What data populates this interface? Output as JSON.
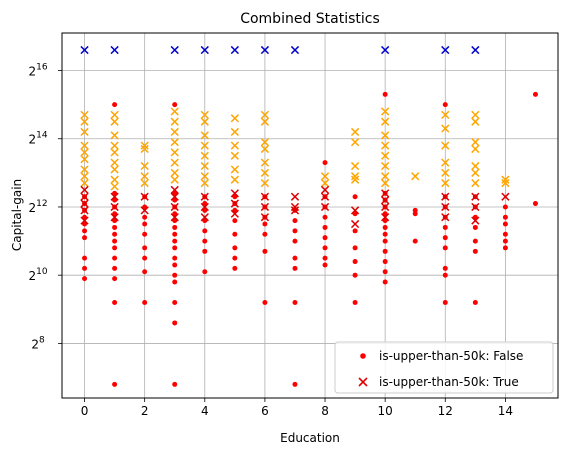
{
  "chart_data": {
    "type": "scatter",
    "title": "Combined Statistics",
    "xlabel": "Education",
    "ylabel": "Capital-gain",
    "xlim": [
      -0.75,
      15.75
    ],
    "ylim_log2": [
      6.4,
      17.1
    ],
    "y_scale": "log2",
    "x_ticks": [
      0,
      2,
      4,
      6,
      8,
      10,
      12,
      14
    ],
    "y_ticks_exp": [
      8,
      10,
      12,
      14,
      16
    ],
    "grid": true,
    "legend_position": "lower-right",
    "series": [
      {
        "name": "is-upper-than-50k: False",
        "marker": "dot",
        "points_log2": [
          [
            0,
            12.3
          ],
          [
            0,
            12.1
          ],
          [
            0,
            11.9
          ],
          [
            0,
            11.7
          ],
          [
            0,
            11.5
          ],
          [
            0,
            11.3
          ],
          [
            0,
            11.1
          ],
          [
            0,
            10.5
          ],
          [
            0,
            10.2
          ],
          [
            0,
            9.9
          ],
          [
            1,
            12.4
          ],
          [
            1,
            12.2
          ],
          [
            1,
            12.0
          ],
          [
            1,
            11.8
          ],
          [
            1,
            11.6
          ],
          [
            1,
            11.4
          ],
          [
            1,
            11.2
          ],
          [
            1,
            11.0
          ],
          [
            1,
            10.8
          ],
          [
            1,
            10.5
          ],
          [
            1,
            10.2
          ],
          [
            1,
            9.9
          ],
          [
            1,
            9.2
          ],
          [
            1,
            6.8
          ],
          [
            1,
            15.0
          ],
          [
            2,
            12.3
          ],
          [
            2,
            12.0
          ],
          [
            2,
            11.7
          ],
          [
            2,
            11.5
          ],
          [
            2,
            11.2
          ],
          [
            2,
            10.8
          ],
          [
            2,
            10.5
          ],
          [
            2,
            10.1
          ],
          [
            2,
            9.2
          ],
          [
            3,
            12.4
          ],
          [
            3,
            12.2
          ],
          [
            3,
            12.0
          ],
          [
            3,
            11.8
          ],
          [
            3,
            11.6
          ],
          [
            3,
            11.4
          ],
          [
            3,
            11.2
          ],
          [
            3,
            11.0
          ],
          [
            3,
            10.8
          ],
          [
            3,
            10.5
          ],
          [
            3,
            10.3
          ],
          [
            3,
            10.0
          ],
          [
            3,
            9.8
          ],
          [
            3,
            9.2
          ],
          [
            3,
            8.6
          ],
          [
            3,
            6.8
          ],
          [
            3,
            15.0
          ],
          [
            4,
            12.3
          ],
          [
            4,
            12.1
          ],
          [
            4,
            11.9
          ],
          [
            4,
            11.6
          ],
          [
            4,
            11.3
          ],
          [
            4,
            11.0
          ],
          [
            4,
            10.7
          ],
          [
            4,
            10.1
          ],
          [
            5,
            12.3
          ],
          [
            5,
            12.1
          ],
          [
            5,
            11.9
          ],
          [
            5,
            11.6
          ],
          [
            5,
            11.2
          ],
          [
            5,
            10.8
          ],
          [
            5,
            10.5
          ],
          [
            5,
            10.2
          ],
          [
            6,
            12.3
          ],
          [
            6,
            12.0
          ],
          [
            6,
            11.7
          ],
          [
            6,
            11.5
          ],
          [
            6,
            11.2
          ],
          [
            6,
            10.7
          ],
          [
            6,
            9.2
          ],
          [
            7,
            11.9
          ],
          [
            7,
            11.6
          ],
          [
            7,
            11.3
          ],
          [
            7,
            11.0
          ],
          [
            7,
            10.5
          ],
          [
            7,
            10.2
          ],
          [
            7,
            9.2
          ],
          [
            7,
            6.8
          ],
          [
            8,
            13.3
          ],
          [
            8,
            12.3
          ],
          [
            8,
            12.0
          ],
          [
            8,
            11.7
          ],
          [
            8,
            11.4
          ],
          [
            8,
            11.1
          ],
          [
            8,
            10.8
          ],
          [
            8,
            10.5
          ],
          [
            8,
            10.3
          ],
          [
            9,
            12.3
          ],
          [
            9,
            11.8
          ],
          [
            9,
            11.3
          ],
          [
            9,
            10.8
          ],
          [
            9,
            10.4
          ],
          [
            9,
            10.0
          ],
          [
            9,
            9.2
          ],
          [
            10,
            15.3
          ],
          [
            10,
            12.4
          ],
          [
            10,
            12.2
          ],
          [
            10,
            12.0
          ],
          [
            10,
            11.8
          ],
          [
            10,
            11.6
          ],
          [
            10,
            11.4
          ],
          [
            10,
            11.2
          ],
          [
            10,
            11.0
          ],
          [
            10,
            10.7
          ],
          [
            10,
            10.4
          ],
          [
            10,
            10.1
          ],
          [
            10,
            9.8
          ],
          [
            11,
            11.9
          ],
          [
            11,
            11.8
          ],
          [
            11,
            11.0
          ],
          [
            12,
            15.0
          ],
          [
            12,
            12.3
          ],
          [
            12,
            12.0
          ],
          [
            12,
            11.7
          ],
          [
            12,
            11.4
          ],
          [
            12,
            11.1
          ],
          [
            12,
            10.8
          ],
          [
            12,
            10.2
          ],
          [
            12,
            10.0
          ],
          [
            12,
            9.2
          ],
          [
            13,
            12.3
          ],
          [
            13,
            12.0
          ],
          [
            13,
            11.7
          ],
          [
            13,
            11.4
          ],
          [
            13,
            11.0
          ],
          [
            13,
            10.7
          ],
          [
            13,
            9.2
          ],
          [
            14,
            12.0
          ],
          [
            14,
            11.7
          ],
          [
            14,
            11.5
          ],
          [
            14,
            11.2
          ],
          [
            14,
            11.0
          ],
          [
            14,
            10.8
          ],
          [
            15,
            15.3
          ],
          [
            15,
            12.1
          ]
        ]
      },
      {
        "name": "is-upper-than-50k: True",
        "marker": "x",
        "points_log2": [
          [
            0,
            16.6
          ],
          [
            1,
            16.6
          ],
          [
            3,
            16.6
          ],
          [
            4,
            16.6
          ],
          [
            5,
            16.6
          ],
          [
            6,
            16.6
          ],
          [
            7,
            16.6
          ],
          [
            10,
            16.6
          ],
          [
            12,
            16.6
          ],
          [
            13,
            16.6
          ],
          [
            0,
            14.7
          ],
          [
            0,
            14.5
          ],
          [
            0,
            14.2
          ],
          [
            0,
            13.8
          ],
          [
            0,
            13.6
          ],
          [
            0,
            13.4
          ],
          [
            0,
            13.1
          ],
          [
            0,
            12.9
          ],
          [
            0,
            12.7
          ],
          [
            0,
            12.5
          ],
          [
            0,
            12.3
          ],
          [
            0,
            12.1
          ],
          [
            0,
            11.9
          ],
          [
            0,
            11.6
          ],
          [
            1,
            14.7
          ],
          [
            1,
            14.5
          ],
          [
            1,
            14.1
          ],
          [
            1,
            13.8
          ],
          [
            1,
            13.6
          ],
          [
            1,
            13.3
          ],
          [
            1,
            13.1
          ],
          [
            1,
            12.8
          ],
          [
            1,
            12.6
          ],
          [
            1,
            12.3
          ],
          [
            1,
            12.0
          ],
          [
            1,
            11.7
          ],
          [
            2,
            13.8
          ],
          [
            2,
            13.7
          ],
          [
            2,
            13.2
          ],
          [
            2,
            12.9
          ],
          [
            2,
            12.7
          ],
          [
            2,
            12.3
          ],
          [
            2,
            11.9
          ],
          [
            3,
            14.8
          ],
          [
            3,
            14.5
          ],
          [
            3,
            14.2
          ],
          [
            3,
            13.9
          ],
          [
            3,
            13.6
          ],
          [
            3,
            13.3
          ],
          [
            3,
            13.0
          ],
          [
            3,
            12.8
          ],
          [
            3,
            12.5
          ],
          [
            3,
            12.3
          ],
          [
            3,
            12.0
          ],
          [
            3,
            11.7
          ],
          [
            4,
            14.7
          ],
          [
            4,
            14.5
          ],
          [
            4,
            14.1
          ],
          [
            4,
            13.8
          ],
          [
            4,
            13.5
          ],
          [
            4,
            13.2
          ],
          [
            4,
            12.9
          ],
          [
            4,
            12.7
          ],
          [
            4,
            12.3
          ],
          [
            4,
            12.0
          ],
          [
            4,
            11.7
          ],
          [
            5,
            14.6
          ],
          [
            5,
            14.2
          ],
          [
            5,
            13.8
          ],
          [
            5,
            13.5
          ],
          [
            5,
            13.1
          ],
          [
            5,
            12.8
          ],
          [
            5,
            12.4
          ],
          [
            5,
            12.1
          ],
          [
            5,
            11.8
          ],
          [
            6,
            14.7
          ],
          [
            6,
            14.5
          ],
          [
            6,
            13.9
          ],
          [
            6,
            13.7
          ],
          [
            6,
            13.3
          ],
          [
            6,
            13.0
          ],
          [
            6,
            12.7
          ],
          [
            6,
            12.3
          ],
          [
            6,
            12.0
          ],
          [
            6,
            11.7
          ],
          [
            7,
            12.3
          ],
          [
            7,
            12.0
          ],
          [
            7,
            11.9
          ],
          [
            8,
            12.9
          ],
          [
            8,
            12.7
          ],
          [
            8,
            12.5
          ],
          [
            8,
            12.3
          ],
          [
            8,
            12.0
          ],
          [
            9,
            14.2
          ],
          [
            9,
            13.9
          ],
          [
            9,
            13.2
          ],
          [
            9,
            12.9
          ],
          [
            9,
            12.8
          ],
          [
            9,
            11.9
          ],
          [
            9,
            11.5
          ],
          [
            10,
            14.8
          ],
          [
            10,
            14.5
          ],
          [
            10,
            14.1
          ],
          [
            10,
            13.8
          ],
          [
            10,
            13.5
          ],
          [
            10,
            13.2
          ],
          [
            10,
            12.9
          ],
          [
            10,
            12.7
          ],
          [
            10,
            12.4
          ],
          [
            10,
            12.2
          ],
          [
            10,
            12.0
          ],
          [
            10,
            11.7
          ],
          [
            11,
            12.9
          ],
          [
            12,
            14.7
          ],
          [
            12,
            14.3
          ],
          [
            12,
            13.8
          ],
          [
            12,
            13.3
          ],
          [
            12,
            13.0
          ],
          [
            12,
            12.7
          ],
          [
            12,
            12.3
          ],
          [
            12,
            12.0
          ],
          [
            12,
            11.7
          ],
          [
            13,
            14.7
          ],
          [
            13,
            14.5
          ],
          [
            13,
            13.9
          ],
          [
            13,
            13.7
          ],
          [
            13,
            13.2
          ],
          [
            13,
            13.0
          ],
          [
            13,
            12.7
          ],
          [
            13,
            12.3
          ],
          [
            13,
            12.0
          ],
          [
            13,
            11.6
          ],
          [
            14,
            12.8
          ],
          [
            14,
            12.7
          ],
          [
            14,
            12.3
          ]
        ]
      }
    ],
    "colors": {
      "false_points": "#ff0000",
      "true_red": "#dd0000",
      "true_orange": "#ffa500",
      "true_blue": "#0000cc"
    }
  }
}
